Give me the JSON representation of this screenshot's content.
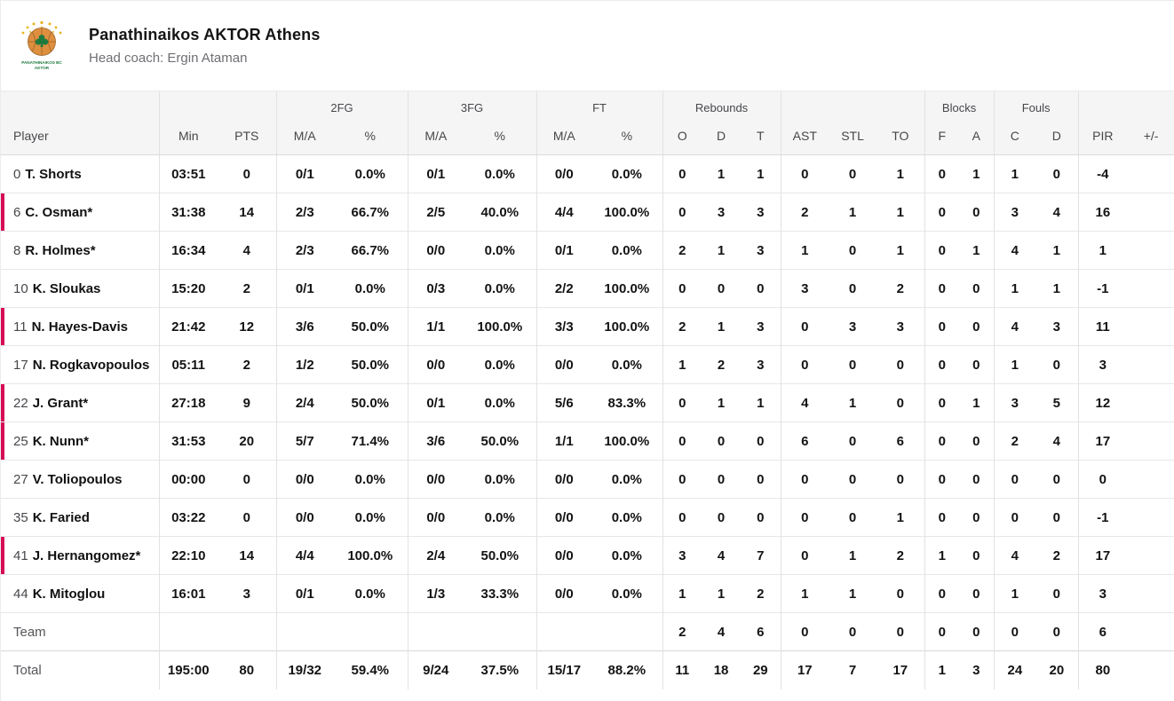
{
  "team_header": {
    "name": "Panathinaikos AKTOR Athens",
    "coach": "Head coach: Ergin Ataman",
    "logo_line1": "PANATHINAIKOS BC",
    "logo_line2": "AKTOR"
  },
  "colors": {
    "accent": "#d60b56",
    "header_bg": "#f5f5f5",
    "grid": "#e2e2e2",
    "logo_orange": "#dd8f3f",
    "logo_green": "#1d7a3e",
    "logo_gold": "#e8b31a"
  },
  "table": {
    "group_headers": [
      {
        "label": "",
        "span": 1
      },
      {
        "label": "",
        "span": 2
      },
      {
        "label": "2FG",
        "span": 2
      },
      {
        "label": "3FG",
        "span": 2
      },
      {
        "label": "FT",
        "span": 2
      },
      {
        "label": "Rebounds",
        "span": 3
      },
      {
        "label": "",
        "span": 3
      },
      {
        "label": "Blocks",
        "span": 2
      },
      {
        "label": "Fouls",
        "span": 2
      },
      {
        "label": "",
        "span": 2
      }
    ],
    "columns": [
      "Player",
      "Min",
      "PTS",
      "M/A",
      "%",
      "M/A",
      "%",
      "M/A",
      "%",
      "O",
      "D",
      "T",
      "AST",
      "STL",
      "TO",
      "F",
      "A",
      "C",
      "D",
      "PIR",
      "+/-"
    ],
    "rows": [
      {
        "no": "0",
        "name": "T. Shorts",
        "accent": false,
        "cells": [
          "03:51",
          "0",
          "0/1",
          "0.0%",
          "0/1",
          "0.0%",
          "0/0",
          "0.0%",
          "0",
          "1",
          "1",
          "0",
          "0",
          "1",
          "0",
          "1",
          "1",
          "0",
          "-4",
          ""
        ]
      },
      {
        "no": "6",
        "name": "C. Osman*",
        "accent": true,
        "cells": [
          "31:38",
          "14",
          "2/3",
          "66.7%",
          "2/5",
          "40.0%",
          "4/4",
          "100.0%",
          "0",
          "3",
          "3",
          "2",
          "1",
          "1",
          "0",
          "0",
          "3",
          "4",
          "16",
          ""
        ]
      },
      {
        "no": "8",
        "name": "R. Holmes*",
        "accent": false,
        "cells": [
          "16:34",
          "4",
          "2/3",
          "66.7%",
          "0/0",
          "0.0%",
          "0/1",
          "0.0%",
          "2",
          "1",
          "3",
          "1",
          "0",
          "1",
          "0",
          "1",
          "4",
          "1",
          "1",
          ""
        ]
      },
      {
        "no": "10",
        "name": "K. Sloukas",
        "accent": false,
        "cells": [
          "15:20",
          "2",
          "0/1",
          "0.0%",
          "0/3",
          "0.0%",
          "2/2",
          "100.0%",
          "0",
          "0",
          "0",
          "3",
          "0",
          "2",
          "0",
          "0",
          "1",
          "1",
          "-1",
          ""
        ]
      },
      {
        "no": "11",
        "name": "N. Hayes-Davis",
        "accent": true,
        "cells": [
          "21:42",
          "12",
          "3/6",
          "50.0%",
          "1/1",
          "100.0%",
          "3/3",
          "100.0%",
          "2",
          "1",
          "3",
          "0",
          "3",
          "3",
          "0",
          "0",
          "4",
          "3",
          "11",
          ""
        ]
      },
      {
        "no": "17",
        "name": "N. Rogkavopoulos",
        "accent": false,
        "cells": [
          "05:11",
          "2",
          "1/2",
          "50.0%",
          "0/0",
          "0.0%",
          "0/0",
          "0.0%",
          "1",
          "2",
          "3",
          "0",
          "0",
          "0",
          "0",
          "0",
          "1",
          "0",
          "3",
          ""
        ]
      },
      {
        "no": "22",
        "name": "J. Grant*",
        "accent": true,
        "cells": [
          "27:18",
          "9",
          "2/4",
          "50.0%",
          "0/1",
          "0.0%",
          "5/6",
          "83.3%",
          "0",
          "1",
          "1",
          "4",
          "1",
          "0",
          "0",
          "1",
          "3",
          "5",
          "12",
          ""
        ]
      },
      {
        "no": "25",
        "name": "K. Nunn*",
        "accent": true,
        "cells": [
          "31:53",
          "20",
          "5/7",
          "71.4%",
          "3/6",
          "50.0%",
          "1/1",
          "100.0%",
          "0",
          "0",
          "0",
          "6",
          "0",
          "6",
          "0",
          "0",
          "2",
          "4",
          "17",
          ""
        ]
      },
      {
        "no": "27",
        "name": "V. Toliopoulos",
        "accent": false,
        "cells": [
          "00:00",
          "0",
          "0/0",
          "0.0%",
          "0/0",
          "0.0%",
          "0/0",
          "0.0%",
          "0",
          "0",
          "0",
          "0",
          "0",
          "0",
          "0",
          "0",
          "0",
          "0",
          "0",
          ""
        ]
      },
      {
        "no": "35",
        "name": "K. Faried",
        "accent": false,
        "cells": [
          "03:22",
          "0",
          "0/0",
          "0.0%",
          "0/0",
          "0.0%",
          "0/0",
          "0.0%",
          "0",
          "0",
          "0",
          "0",
          "0",
          "1",
          "0",
          "0",
          "0",
          "0",
          "-1",
          ""
        ]
      },
      {
        "no": "41",
        "name": "J. Hernangomez*",
        "accent": true,
        "cells": [
          "22:10",
          "14",
          "4/4",
          "100.0%",
          "2/4",
          "50.0%",
          "0/0",
          "0.0%",
          "3",
          "4",
          "7",
          "0",
          "1",
          "2",
          "1",
          "0",
          "4",
          "2",
          "17",
          ""
        ]
      },
      {
        "no": "44",
        "name": "K. Mitoglou",
        "accent": false,
        "cells": [
          "16:01",
          "3",
          "0/1",
          "0.0%",
          "1/3",
          "33.3%",
          "0/0",
          "0.0%",
          "1",
          "1",
          "2",
          "1",
          "1",
          "0",
          "0",
          "0",
          "1",
          "0",
          "3",
          ""
        ]
      }
    ],
    "summary_rows": [
      {
        "label": "Team",
        "cells": [
          "",
          "",
          "",
          "",
          "",
          "",
          "",
          "",
          "2",
          "4",
          "6",
          "0",
          "0",
          "0",
          "0",
          "0",
          "0",
          "0",
          "6",
          ""
        ]
      },
      {
        "label": "Total",
        "cells": [
          "195:00",
          "80",
          "19/32",
          "59.4%",
          "9/24",
          "37.5%",
          "15/17",
          "88.2%",
          "11",
          "18",
          "29",
          "17",
          "7",
          "17",
          "1",
          "3",
          "24",
          "20",
          "80",
          ""
        ]
      }
    ]
  }
}
